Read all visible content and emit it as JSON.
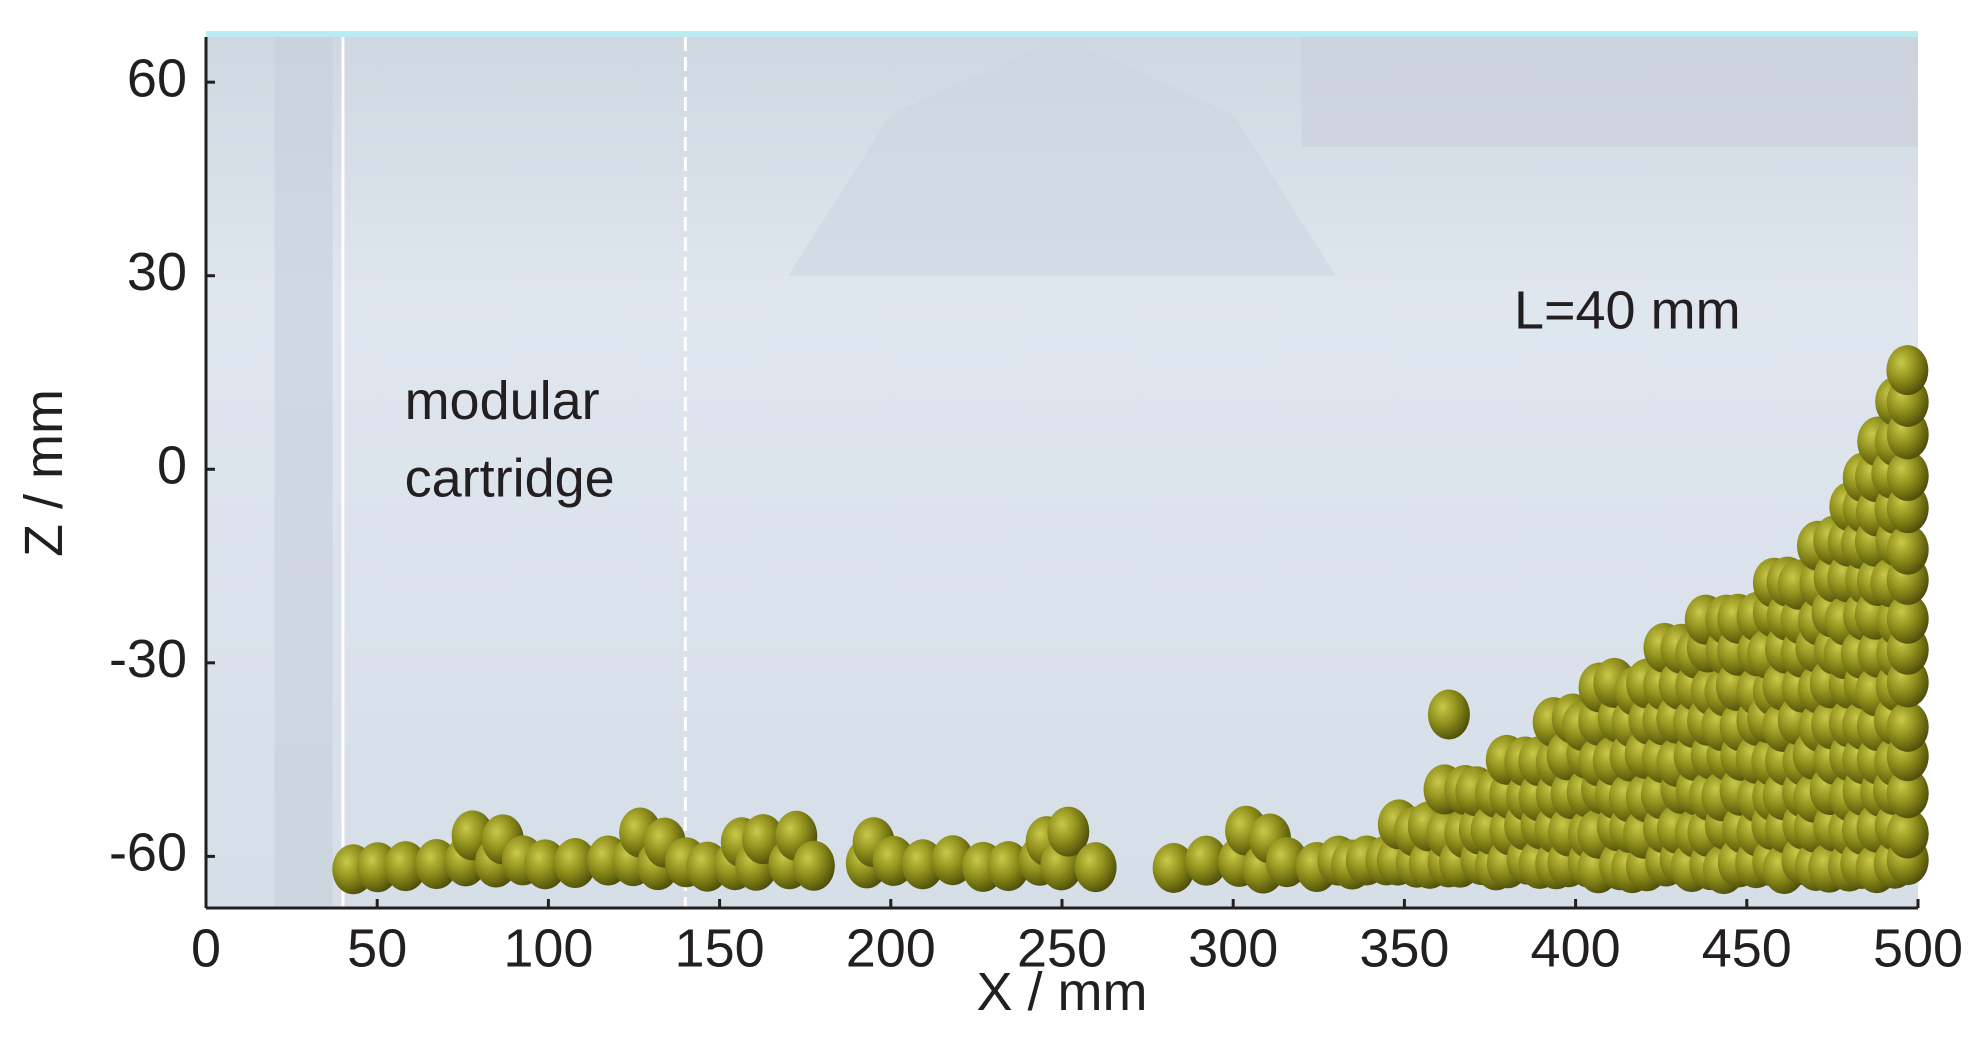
{
  "chart_data": {
    "type": "particle-simulation",
    "xlabel": "X / mm",
    "ylabel": "Z / mm",
    "xlim": [
      0,
      500
    ],
    "ylim": [
      -68,
      67
    ],
    "xticks": [
      0,
      50,
      100,
      150,
      200,
      250,
      300,
      350,
      400,
      450,
      500
    ],
    "yticks": [
      -60,
      -30,
      0,
      30,
      60
    ],
    "annotations": [
      {
        "text": "modular",
        "x": 58,
        "y": 10
      },
      {
        "text": "cartridge",
        "x": 58,
        "y": -2
      },
      {
        "text": "L=40 mm",
        "x": 382,
        "y": 24
      }
    ],
    "reference_lines": [
      {
        "x": 40,
        "style": "solid"
      },
      {
        "x": 140,
        "style": "dashed"
      }
    ],
    "particle_color": "#8f8f1c"
  }
}
